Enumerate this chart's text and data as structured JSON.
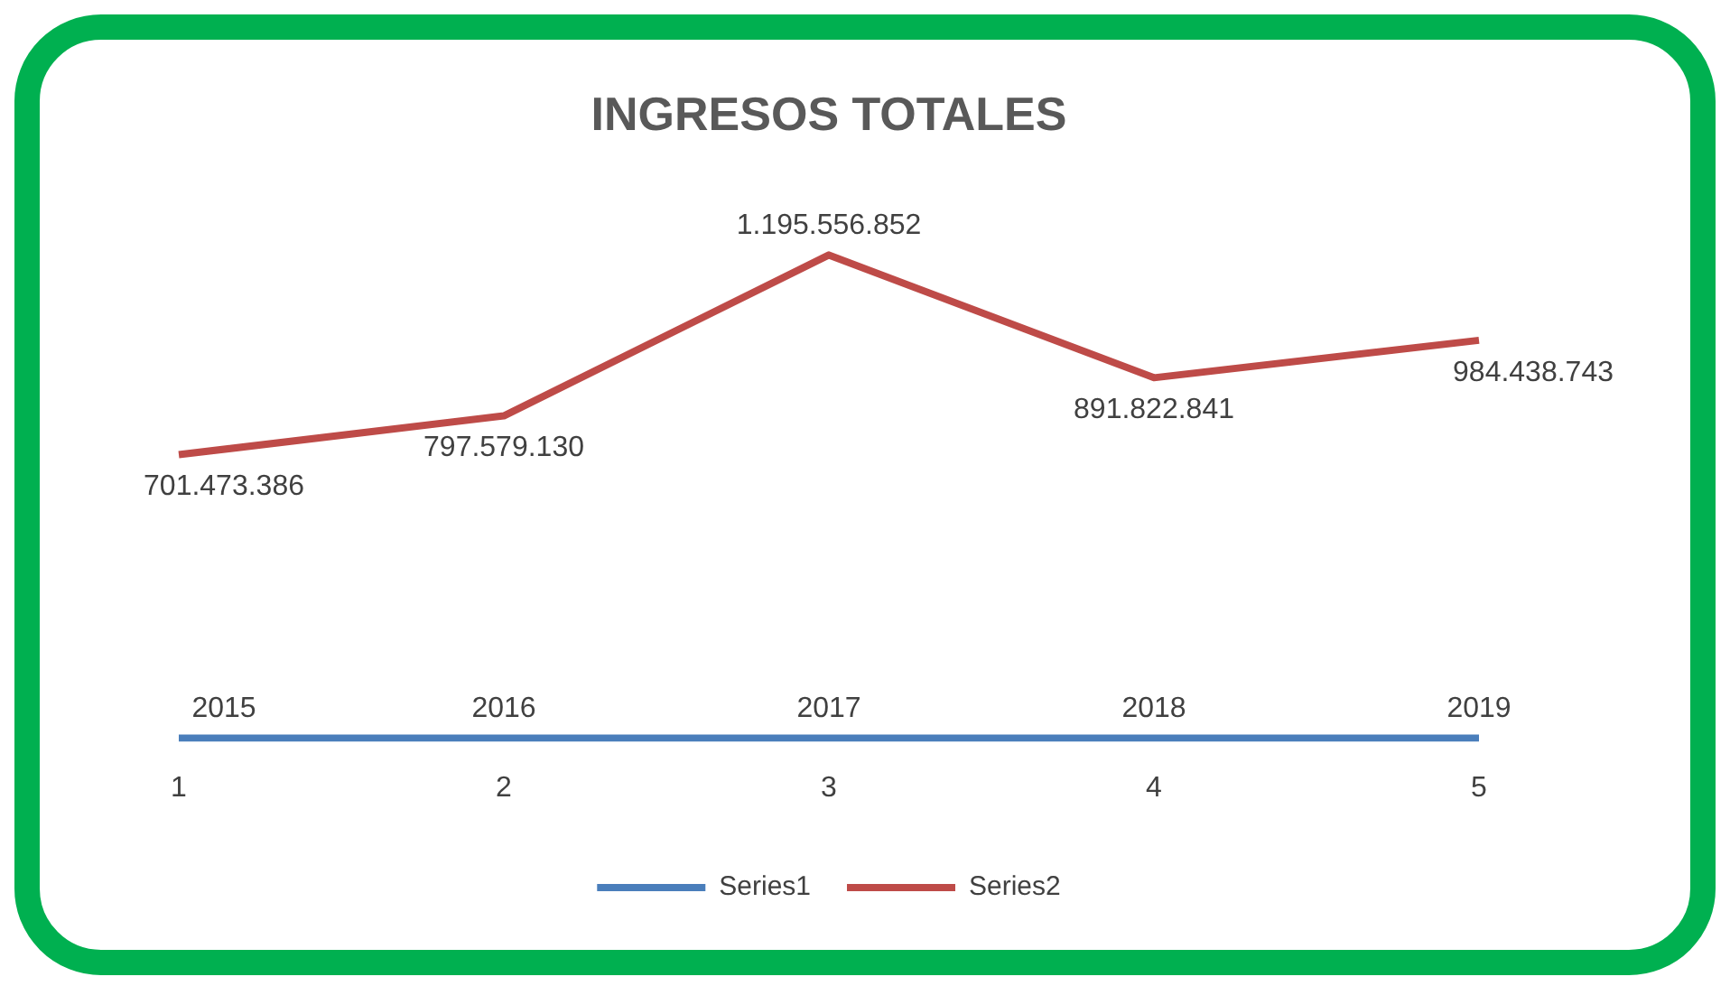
{
  "chart_data": {
    "type": "line",
    "title": "INGRESOS TOTALES",
    "categories": [
      "1",
      "2",
      "3",
      "4",
      "5"
    ],
    "series": [
      {
        "name": "Series1",
        "color": "#4a7ebb",
        "values": [
          2015,
          2016,
          2017,
          2018,
          2019
        ],
        "value_labels": [
          "2015",
          "2016",
          "2017",
          "2018",
          "2019"
        ]
      },
      {
        "name": "Series2",
        "color": "#be4b48",
        "values": [
          701473386,
          797579130,
          1195556852,
          891822841,
          984438743
        ],
        "value_labels": [
          "701.473.386",
          "797.579.130",
          "1.195.556.852",
          "891.822.841",
          "984.438.743"
        ]
      }
    ],
    "tick_labels": "x",
    "grid": false,
    "legend": "bottom",
    "marker": "none",
    "line_style": "solid"
  }
}
